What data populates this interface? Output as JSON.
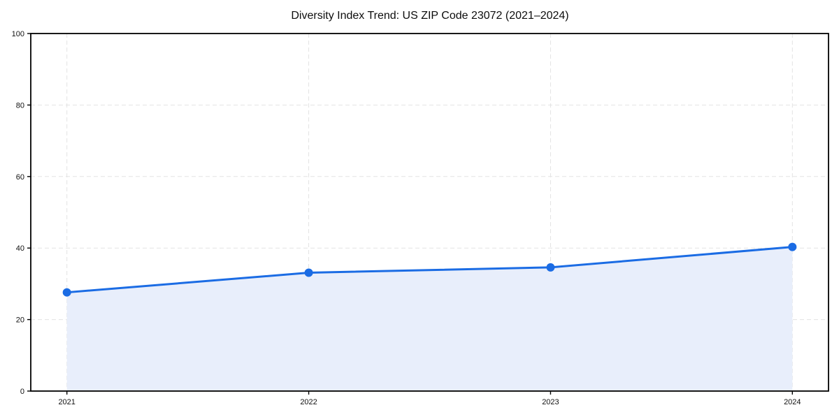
{
  "chart_data": {
    "type": "area",
    "title": "Diversity Index Trend: US ZIP Code 23072 (2021–2024)",
    "categories": [
      "2021",
      "2022",
      "2023",
      "2024"
    ],
    "values": [
      27.6,
      33.1,
      34.6,
      40.3
    ],
    "xlabel": "",
    "ylabel": "",
    "ylim": [
      0,
      100
    ],
    "yticks": [
      0,
      20,
      40,
      60,
      80,
      100
    ],
    "grid": true,
    "grid_style": "dashed",
    "legend_position": "none",
    "marker": "circle",
    "colors": {
      "line": "#1b6ce4",
      "marker": "#1b6ce4",
      "fill": "#e8eefb",
      "grid": "#e3e3e3",
      "spine": "#000000",
      "tick_text": "#111111",
      "background": "#ffffff"
    }
  }
}
